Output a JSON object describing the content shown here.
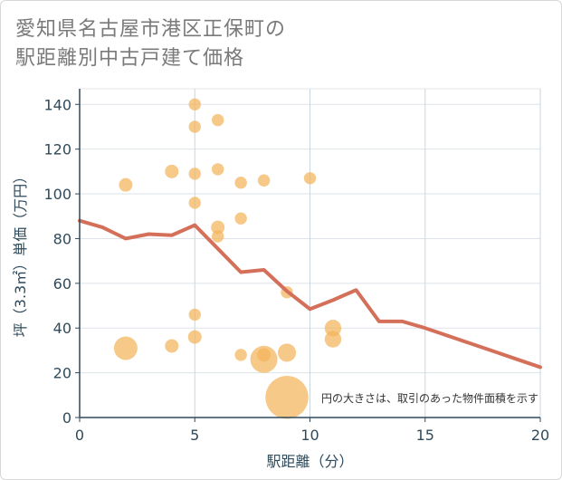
{
  "title": {
    "line1": "愛知県名古屋市港区正保町の",
    "line2": "駅距離別中古戸建て価格"
  },
  "chart_data": {
    "type": "scatter",
    "xlabel": "駅距離（分）",
    "ylabel": "坪（3.3㎡）単価（万円）",
    "xlim": [
      0,
      20
    ],
    "ylim": [
      0,
      147
    ],
    "x_ticks": [
      "0",
      "5",
      "10",
      "15",
      "20"
    ],
    "y_ticks": [
      "0",
      "20",
      "40",
      "60",
      "80",
      "100",
      "120",
      "140"
    ],
    "grid": true,
    "annotation": "円の大きさは、取引のあった物件面積を示す",
    "colors": {
      "bubble": "#f2b45a",
      "line": "#d4705a"
    },
    "bubbles": [
      {
        "x": 2,
        "y": 104,
        "size": 1
      },
      {
        "x": 2,
        "y": 31,
        "size": 3
      },
      {
        "x": 4,
        "y": 110,
        "size": 1
      },
      {
        "x": 4,
        "y": 32,
        "size": 1
      },
      {
        "x": 5,
        "y": 140,
        "size": 0.8
      },
      {
        "x": 5,
        "y": 130,
        "size": 0.8
      },
      {
        "x": 5,
        "y": 109,
        "size": 0.8
      },
      {
        "x": 5,
        "y": 96,
        "size": 0.8
      },
      {
        "x": 5,
        "y": 46,
        "size": 0.8
      },
      {
        "x": 5,
        "y": 36,
        "size": 1
      },
      {
        "x": 6,
        "y": 133,
        "size": 0.8
      },
      {
        "x": 6,
        "y": 111,
        "size": 0.8
      },
      {
        "x": 6,
        "y": 85,
        "size": 1
      },
      {
        "x": 6,
        "y": 81,
        "size": 0.8
      },
      {
        "x": 7,
        "y": 105,
        "size": 0.8
      },
      {
        "x": 7,
        "y": 89,
        "size": 0.8
      },
      {
        "x": 7,
        "y": 28,
        "size": 0.8
      },
      {
        "x": 8,
        "y": 106,
        "size": 0.8
      },
      {
        "x": 8,
        "y": 26,
        "size": 4
      },
      {
        "x": 8,
        "y": 28,
        "size": 1
      },
      {
        "x": 9,
        "y": 56,
        "size": 0.8
      },
      {
        "x": 9,
        "y": 29,
        "size": 1.8
      },
      {
        "x": 9,
        "y": 9,
        "size": 10
      },
      {
        "x": 10,
        "y": 107,
        "size": 0.8
      },
      {
        "x": 11,
        "y": 40,
        "size": 1.5
      },
      {
        "x": 11,
        "y": 35,
        "size": 1.5
      }
    ],
    "trend_line": {
      "x": [
        0,
        1,
        2,
        3,
        4,
        5,
        6,
        7,
        8,
        9,
        10,
        11,
        12,
        13,
        14,
        15,
        16,
        17,
        18,
        19,
        20
      ],
      "y": [
        88,
        85,
        80,
        82,
        81.5,
        86,
        75.5,
        65,
        66,
        56.5,
        48.5,
        52.5,
        57,
        43,
        43,
        40,
        36.5,
        33,
        29.5,
        26,
        22.5
      ]
    }
  }
}
